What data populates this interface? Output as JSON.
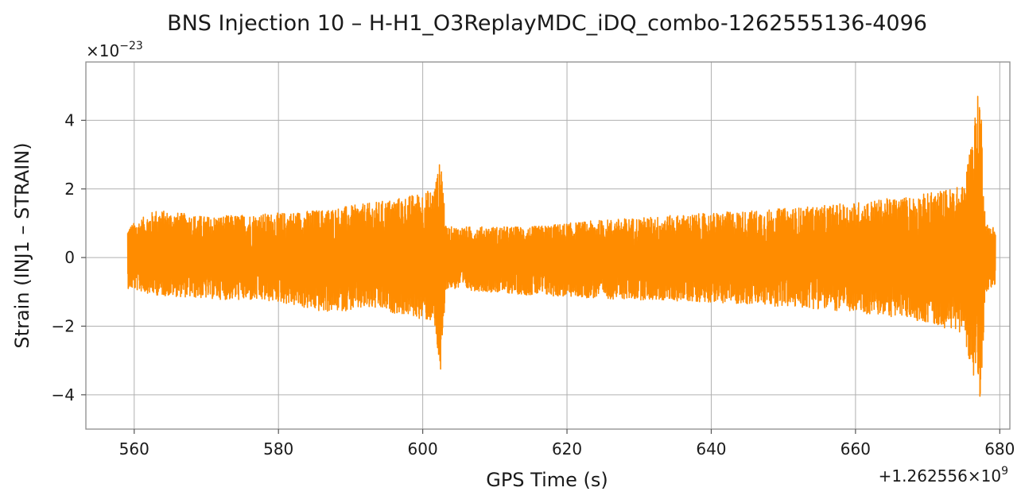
{
  "chart_data": {
    "type": "line",
    "title": "BNS Injection 10 – H-H1_O3ReplayMDC_iDQ_combo-1262555136-4096",
    "xlabel": "GPS Time (s)",
    "ylabel": "Strain (INJ1 – STRAIN)",
    "x_offset_label": "+1.262556×10",
    "x_offset_exponent": "9",
    "y_scale_label": "×10",
    "y_scale_exponent": "−23",
    "xlim": [
      553.3,
      681.4
    ],
    "ylim": [
      -5.0,
      5.7
    ],
    "x_ticks": [
      560,
      580,
      600,
      620,
      640,
      660,
      680
    ],
    "x_tick_labels": [
      "560",
      "580",
      "600",
      "620",
      "640",
      "660",
      "680"
    ],
    "y_ticks": [
      -4,
      -2,
      0,
      2,
      4
    ],
    "y_tick_labels": [
      "−4",
      "−2",
      "0",
      "2",
      "4"
    ],
    "grid": true,
    "series": [
      {
        "color": "#ff8c00",
        "x_start": 559.1,
        "x_end": 679.4,
        "envelope": [
          {
            "x": 559.1,
            "upper": 0.9,
            "lower": -0.9
          },
          {
            "x": 563.0,
            "upper": 1.4,
            "lower": -1.1
          },
          {
            "x": 570.0,
            "upper": 1.2,
            "lower": -1.2
          },
          {
            "x": 580.0,
            "upper": 1.3,
            "lower": -1.3
          },
          {
            "x": 586.0,
            "upper": 1.4,
            "lower": -1.6
          },
          {
            "x": 593.0,
            "upper": 1.6,
            "lower": -1.5
          },
          {
            "x": 598.0,
            "upper": 1.8,
            "lower": -1.7
          },
          {
            "x": 601.5,
            "upper": 2.0,
            "lower": -1.9
          },
          {
            "x": 602.6,
            "upper": 3.0,
            "lower": -3.7
          },
          {
            "x": 603.2,
            "upper": 0.9,
            "lower": -0.9
          },
          {
            "x": 615.0,
            "upper": 0.9,
            "lower": -1.1
          },
          {
            "x": 625.0,
            "upper": 1.1,
            "lower": -1.2
          },
          {
            "x": 640.0,
            "upper": 1.3,
            "lower": -1.3
          },
          {
            "x": 655.0,
            "upper": 1.5,
            "lower": -1.5
          },
          {
            "x": 668.0,
            "upper": 1.8,
            "lower": -1.8
          },
          {
            "x": 675.0,
            "upper": 2.1,
            "lower": -2.2
          },
          {
            "x": 677.3,
            "upper": 5.2,
            "lower": -4.5
          },
          {
            "x": 678.0,
            "upper": 1.0,
            "lower": -1.0
          },
          {
            "x": 679.4,
            "upper": 0.9,
            "lower": -0.8
          }
        ]
      }
    ]
  }
}
